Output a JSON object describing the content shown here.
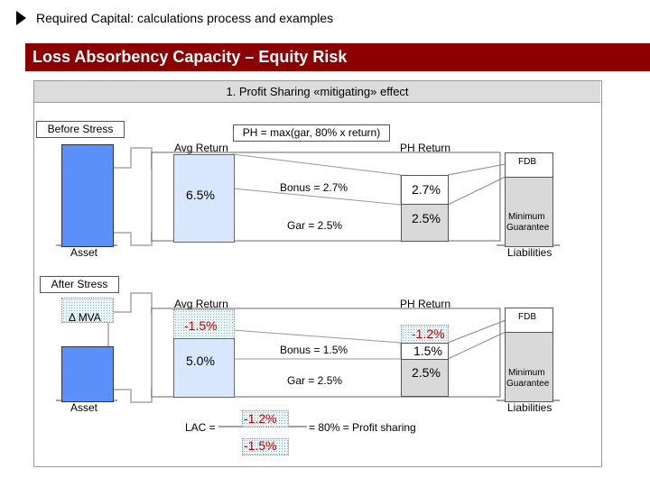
{
  "header": {
    "section_title": "Required Capital: calculations process and examples",
    "banner_title": "Loss Absorbency Capacity – Equity Risk"
  },
  "diagram": {
    "title": "1. Profit Sharing «mitigating» effect",
    "before": {
      "label": "Before Stress",
      "formula": "PH = max(gar, 80% x return)",
      "avg_return_label": "Avg Return",
      "ph_return_label": "PH Return",
      "avg_return": "6.5%",
      "bonus": "Bonus = 2.7%",
      "gar": "Gar = 2.5%",
      "ph_bonus": "2.7%",
      "ph_gar": "2.5%",
      "fdb": "FDB",
      "min_guarantee_1": "Minimum",
      "min_guarantee_2": "Guarantee",
      "asset": "Asset",
      "liabilities": "Liabilities"
    },
    "after": {
      "label": "After Stress",
      "mva": "Δ MVA",
      "avg_return_label": "Avg Return",
      "ph_return_label": "PH Return",
      "avg_return_loss": "-1.5%",
      "avg_return": "5.0%",
      "bonus": "Bonus = 1.5%",
      "gar": "Gar = 2.5%",
      "ph_loss": "-1.2%",
      "ph_bonus": "1.5%",
      "ph_gar": "2.5%",
      "fdb": "FDB",
      "min_guarantee_1": "Minimum",
      "min_guarantee_2": "Guarantee",
      "asset": "Asset",
      "liabilities": "Liabilities",
      "lac_label": "LAC =",
      "lac_numerator": "-1.2%",
      "lac_denominator": "-1.5%",
      "lac_result": "= 80% = Profit sharing"
    }
  },
  "colors": {
    "banner": "#8b0000",
    "asset_bar": "#5b8ff9",
    "return_box": "#d9e7fd",
    "loss_text": "#c00000"
  }
}
